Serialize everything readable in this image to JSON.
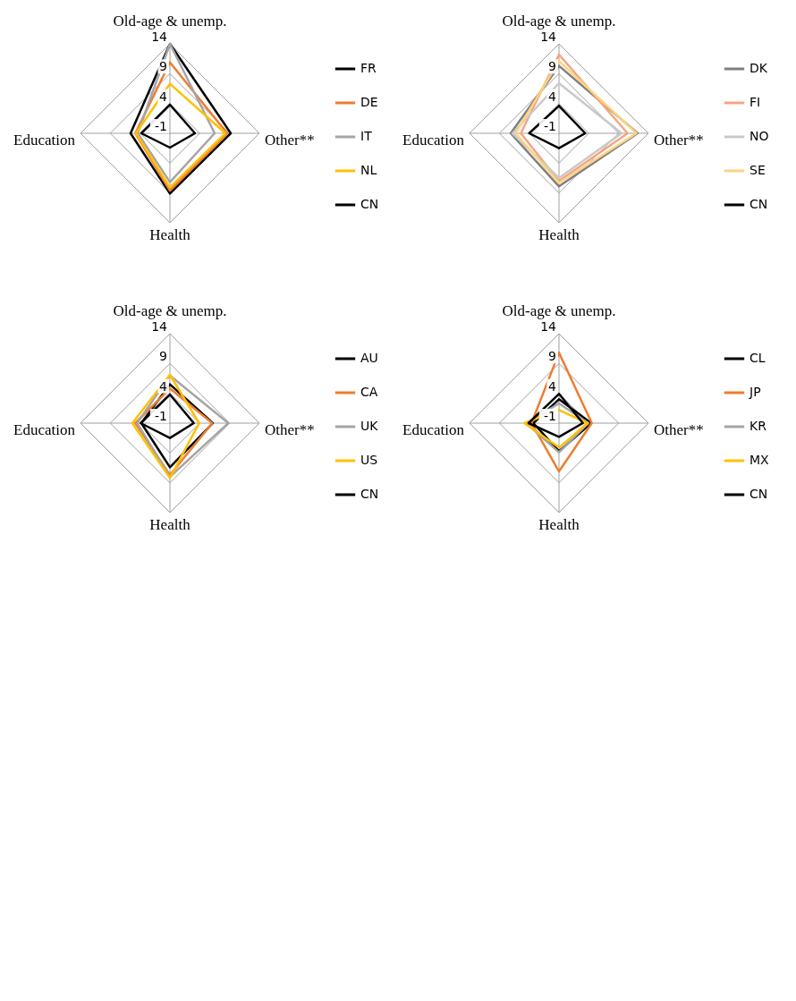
{
  "chart_data": [
    {
      "type": "radar",
      "categories": [
        "Old-age & unemp.",
        "Other**",
        "Health",
        "Education"
      ],
      "ylim": [
        -1,
        14
      ],
      "yticks": [
        -1,
        4,
        9,
        14
      ],
      "grid": true,
      "legend": "right",
      "series": [
        {
          "name": "FR",
          "color": "#000000",
          "values": [
            14,
            9.2,
            9.1,
            5.6
          ]
        },
        {
          "name": "DE",
          "color": "#ed7d31",
          "values": [
            10.9,
            8.6,
            8.6,
            4.8
          ]
        },
        {
          "name": "IT",
          "color": "#a5a5a5",
          "values": [
            14,
            6.5,
            7.2,
            4.4
          ]
        },
        {
          "name": "NL",
          "color": "#ffc000",
          "values": [
            7.3,
            8.3,
            8.1,
            4.7
          ]
        },
        {
          "name": "CN",
          "color": "#000000",
          "values": [
            3.8,
            3.2,
            1.4,
            3.8
          ]
        }
      ]
    },
    {
      "type": "radar",
      "categories": [
        "Old-age & unemp.",
        "Other**",
        "Health",
        "Education"
      ],
      "ylim": [
        -1,
        14
      ],
      "yticks": [
        -1,
        4,
        9,
        14
      ],
      "grid": true,
      "legend": "right",
      "series": [
        {
          "name": "DK",
          "color": "#7f7f7f",
          "values": [
            10.3,
            12.2,
            7.9,
            7.1
          ]
        },
        {
          "name": "FI",
          "color": "#f4a582",
          "values": [
            12.2,
            10.5,
            7.0,
            5.4
          ]
        },
        {
          "name": "NO",
          "color": "#c9c9c9",
          "values": [
            7.4,
            9.5,
            6.5,
            6.8
          ]
        },
        {
          "name": "SE",
          "color": "#ffd280",
          "values": [
            11.1,
            12.0,
            7.3,
            6.3
          ]
        },
        {
          "name": "CN",
          "color": "#000000",
          "values": [
            3.6,
            3.4,
            1.5,
            4.0
          ]
        }
      ]
    },
    {
      "type": "radar",
      "categories": [
        "Old-age & unemp.",
        "Other**",
        "Health",
        "Education"
      ],
      "ylim": [
        -1,
        14
      ],
      "yticks": [
        -1,
        4,
        9,
        14
      ],
      "grid": true,
      "legend": "right",
      "series": [
        {
          "name": "AU",
          "color": "#000000",
          "values": [
            5.5,
            6.2,
            6.4,
            3.8
          ]
        },
        {
          "name": "CA",
          "color": "#ed7d31",
          "values": [
            4.8,
            6.1,
            7.7,
            4.8
          ]
        },
        {
          "name": "UK",
          "color": "#a5a5a5",
          "values": [
            7.0,
            8.8,
            8.0,
            4.5
          ]
        },
        {
          "name": "US",
          "color": "#ffc000",
          "values": [
            7.1,
            3.9,
            8.2,
            5.3
          ]
        },
        {
          "name": "CN",
          "color": "#000000",
          "values": [
            3.8,
            3.0,
            1.5,
            3.9
          ]
        }
      ]
    },
    {
      "type": "radar",
      "categories": [
        "Old-age & unemp.",
        "Other**",
        "Health",
        "Education"
      ],
      "ylim": [
        -1,
        14
      ],
      "yticks": [
        -1,
        4,
        9,
        14
      ],
      "grid": true,
      "legend": "right",
      "series": [
        {
          "name": "CL",
          "color": "#000000",
          "values": [
            3.0,
            4.4,
            3.7,
            3.3
          ]
        },
        {
          "name": "JP",
          "color": "#ed7d31",
          "values": [
            10.8,
            4.5,
            7.1,
            3.6
          ]
        },
        {
          "name": "KR",
          "color": "#a5a5a5",
          "values": [
            2.3,
            3.9,
            3.9,
            4.5
          ]
        },
        {
          "name": "MX",
          "color": "#ffc000",
          "values": [
            1.2,
            3.8,
            3.1,
            4.8
          ]
        },
        {
          "name": "CN",
          "color": "#000000",
          "values": [
            3.9,
            3.0,
            1.3,
            4.1
          ]
        }
      ]
    }
  ]
}
